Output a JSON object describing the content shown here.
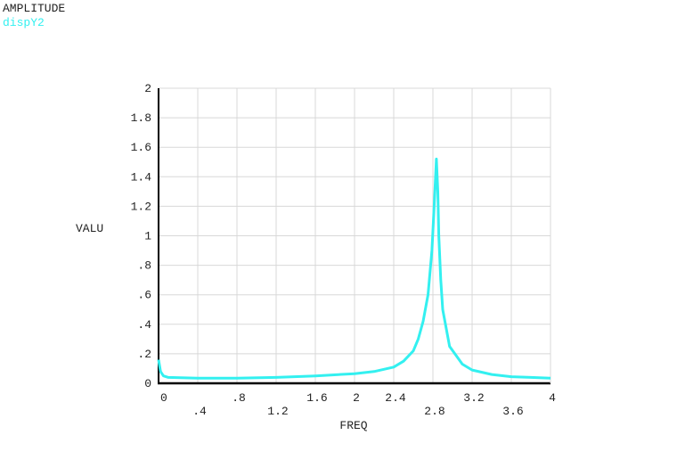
{
  "chart_data": {
    "type": "line",
    "title": "AMPLITUDE",
    "xlabel": "FREQ",
    "ylabel": "VALU",
    "grid": true,
    "xlim": [
      0,
      4
    ],
    "ylim": [
      0,
      2
    ],
    "xticks": [
      0,
      {
        "value": 0.4,
        "label": ".4"
      },
      {
        "value": 0.8,
        "label": ".8"
      },
      1.2,
      1.6,
      2,
      2.4,
      2.8,
      3.2,
      3.6,
      4
    ],
    "yticks": [
      0,
      {
        "value": 0.2,
        "label": ".2"
      },
      {
        "value": 0.4,
        "label": ".4"
      },
      {
        "value": 0.6,
        "label": ".6"
      },
      {
        "value": 0.8,
        "label": ".8"
      },
      1,
      1.2,
      1.4,
      1.6,
      1.8,
      2
    ],
    "x": [
      0,
      0.02,
      0.05,
      0.1,
      0.4,
      0.8,
      1.2,
      1.6,
      2.0,
      2.2,
      2.4,
      2.5,
      2.6,
      2.65,
      2.7,
      2.75,
      2.79,
      2.82,
      2.835,
      2.85,
      2.86,
      2.88,
      2.9,
      2.97,
      3.1,
      3.2,
      3.4,
      3.6,
      3.8,
      4
    ],
    "series": [
      {
        "name": "dispY2",
        "color": "#33f0f0",
        "values": [
          0.16,
          0.08,
          0.05,
          0.04,
          0.035,
          0.035,
          0.04,
          0.05,
          0.065,
          0.08,
          0.11,
          0.15,
          0.22,
          0.3,
          0.42,
          0.6,
          0.9,
          1.3,
          1.52,
          1.3,
          1.0,
          0.7,
          0.5,
          0.25,
          0.13,
          0.09,
          0.06,
          0.045,
          0.04,
          0.035
        ]
      }
    ]
  }
}
